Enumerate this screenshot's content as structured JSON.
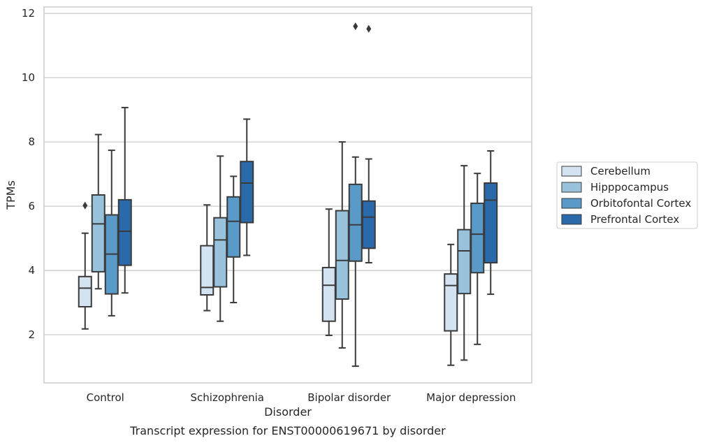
{
  "chart_data": {
    "type": "box",
    "caption": "Transcript expression for ENST00000619671 by disorder",
    "xlabel": "Disorder",
    "ylabel": "TPMs",
    "ylim": [
      0.5,
      12.2
    ],
    "yticks": [
      2,
      4,
      6,
      8,
      10,
      12
    ],
    "grid": "horizontal",
    "legend_position": "right",
    "categories": [
      "Control",
      "Schizophrenia",
      "Bipolar disorder",
      "Major depression"
    ],
    "series": [
      {
        "name": "Cerebellum",
        "color": "#d4e3f2",
        "boxes": [
          {
            "whislo": 2.18,
            "q1": 2.87,
            "med": 3.45,
            "q3": 3.81,
            "whishi": 5.16,
            "fliers": [
              6.02
            ]
          },
          {
            "whislo": 2.75,
            "q1": 3.24,
            "med": 3.47,
            "q3": 4.77,
            "whishi": 6.04,
            "fliers": []
          },
          {
            "whislo": 1.98,
            "q1": 2.42,
            "med": 3.54,
            "q3": 4.09,
            "whishi": 5.91,
            "fliers": []
          },
          {
            "whislo": 1.05,
            "q1": 2.12,
            "med": 3.53,
            "q3": 3.89,
            "whishi": 4.81,
            "fliers": []
          }
        ]
      },
      {
        "name": "Hipppocampus",
        "color": "#99c2dd",
        "boxes": [
          {
            "whislo": 3.43,
            "q1": 3.96,
            "med": 5.45,
            "q3": 6.35,
            "whishi": 8.23,
            "fliers": []
          },
          {
            "whislo": 2.42,
            "q1": 3.49,
            "med": 4.95,
            "q3": 5.64,
            "whishi": 7.56,
            "fliers": []
          },
          {
            "whislo": 1.59,
            "q1": 3.11,
            "med": 4.31,
            "q3": 5.86,
            "whishi": 8.0,
            "fliers": []
          },
          {
            "whislo": 1.21,
            "q1": 3.28,
            "med": 4.61,
            "q3": 5.27,
            "whishi": 7.26,
            "fliers": []
          }
        ]
      },
      {
        "name": "Orbitofontal Cortex",
        "color": "#5a9ac8",
        "boxes": [
          {
            "whislo": 2.59,
            "q1": 3.27,
            "med": 4.51,
            "q3": 5.73,
            "whishi": 7.74,
            "fliers": []
          },
          {
            "whislo": 3.0,
            "q1": 4.42,
            "med": 5.53,
            "q3": 6.29,
            "whishi": 6.93,
            "fliers": []
          },
          {
            "whislo": 1.02,
            "q1": 4.29,
            "med": 5.42,
            "q3": 6.68,
            "whishi": 7.53,
            "fliers": [
              11.6
            ]
          },
          {
            "whislo": 1.7,
            "q1": 3.93,
            "med": 5.13,
            "q3": 6.09,
            "whishi": 7.02,
            "fliers": []
          }
        ]
      },
      {
        "name": "Prefrontal Cortex",
        "color": "#2a6aab",
        "boxes": [
          {
            "whislo": 3.3,
            "q1": 4.16,
            "med": 5.22,
            "q3": 6.2,
            "whishi": 9.07,
            "fliers": []
          },
          {
            "whislo": 4.47,
            "q1": 5.49,
            "med": 6.72,
            "q3": 7.39,
            "whishi": 8.71,
            "fliers": []
          },
          {
            "whislo": 4.24,
            "q1": 4.69,
            "med": 5.66,
            "q3": 6.16,
            "whishi": 7.47,
            "fliers": [
              11.52
            ]
          },
          {
            "whislo": 3.26,
            "q1": 4.24,
            "med": 6.19,
            "q3": 6.72,
            "whishi": 7.72,
            "fliers": []
          }
        ]
      }
    ]
  }
}
